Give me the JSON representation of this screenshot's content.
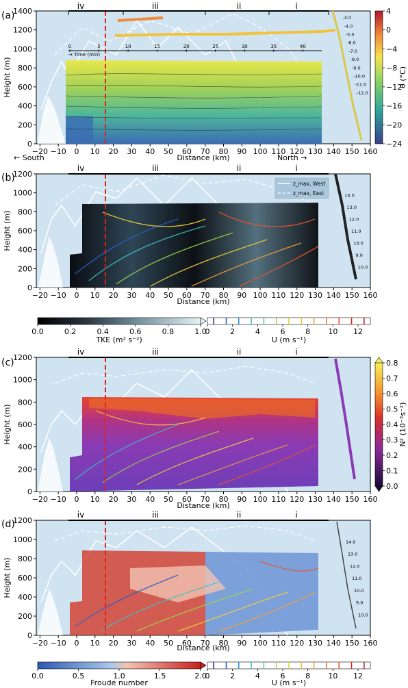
{
  "figure": {
    "x_axis_label": "Distance (km)",
    "direction_left": "← South",
    "direction_right": "North →",
    "sections": [
      "iv",
      "iii",
      "ii",
      "i"
    ]
  },
  "panels": [
    {
      "id": "a",
      "label": "(a)",
      "ylabel": "Height (m)",
      "yticks": [
        0,
        200,
        400,
        600,
        800,
        1000,
        1200,
        1400
      ],
      "colorbar": {
        "label": "θ (°C)",
        "ticks": [
          "4",
          "0",
          "−4",
          "−8",
          "−12",
          "−16",
          "−20",
          "−24"
        ]
      },
      "inset_time_axis": {
        "label": "→ Time (min)",
        "ticks": [
          "0",
          "5",
          "10",
          "15",
          "20",
          "25",
          "30",
          "35",
          "40"
        ]
      },
      "profile_labels": [
        "-3.0",
        "-4.0",
        "-5.0",
        "-6.0",
        "-7.0",
        "-8.0",
        "-9.0",
        "-10.0",
        "-11.0",
        "-12.0"
      ]
    },
    {
      "id": "b",
      "label": "(b)",
      "ylabel": "Height (m)",
      "yticks": [
        0,
        200,
        400,
        600,
        800,
        1000,
        1200
      ],
      "legend": [
        "z_max, West",
        "z_max, East"
      ],
      "profile_labels": [
        "14.0",
        "13.0",
        "12.0",
        "11.0",
        "10.0",
        "9.0",
        "10.0"
      ]
    },
    {
      "id": "c",
      "label": "(c)",
      "ylabel": "Height (m)",
      "yticks": [
        0,
        200,
        400,
        600,
        800,
        1000,
        1200
      ],
      "colorbar": {
        "label": "N² (10⁻³s⁻²)",
        "ticks": [
          "0.8",
          "0.7",
          "0.6",
          "0.5",
          "0.4",
          "0.3",
          "0.2",
          "0.1",
          "0.0"
        ]
      }
    },
    {
      "id": "d",
      "label": "(d)",
      "ylabel": "Height (m)",
      "yticks": [
        0,
        200,
        400,
        600,
        800,
        1000,
        1200
      ],
      "profile_labels": [
        "14.0",
        "13.0",
        "12.0",
        "11.0",
        "10.0",
        "9.0",
        "10.0"
      ]
    }
  ],
  "colorbars_bottom": [
    {
      "label": "TKE (m² s⁻²)",
      "ticks": [
        "0.0",
        "0.2",
        "0.4",
        "0.6",
        "0.8",
        "1.0"
      ]
    },
    {
      "label": "U (m s⁻¹)",
      "ticks": [
        "0",
        "2",
        "4",
        "6",
        "8",
        "10",
        "12"
      ]
    },
    {
      "label": "Froude number",
      "ticks": [
        "0.0",
        "0.5",
        "1.0",
        "1.5",
        "2.0"
      ]
    },
    {
      "label": "U (m s⁻¹)",
      "ticks": [
        "0",
        "2",
        "4",
        "6",
        "8",
        "10",
        "12"
      ]
    }
  ],
  "chart_data": [
    {
      "type": "heatmap",
      "panel": "a",
      "title": "",
      "xlabel": "Distance (km)",
      "ylabel": "Height (m)",
      "xlim": [
        -22,
        160
      ],
      "ylim": [
        0,
        1400
      ],
      "x_ticks": [
        -20,
        -10,
        0,
        10,
        20,
        30,
        40,
        50,
        60,
        70,
        80,
        90,
        100,
        110,
        120,
        130,
        140,
        150,
        160
      ],
      "colormap_variable": "θ (°C)",
      "colormap_range": [
        -24,
        4
      ],
      "section_labels": [
        "iv",
        "iii",
        "ii",
        "i"
      ],
      "dashed_line_x": 18,
      "field_region_x": [
        0,
        136
      ],
      "field_region_top_height": 880,
      "colors": {
        "background": "#cfe3f1",
        "field_top": "#e5e54a",
        "field_bottom": "#3b5fa8",
        "dashed_line": "#e0201a"
      }
    },
    {
      "type": "heatmap",
      "panel": "b",
      "title": "",
      "xlabel": "Distance (km)",
      "ylabel": "Height (m)",
      "xlim": [
        -22,
        160
      ],
      "ylim": [
        0,
        1200
      ],
      "x_ticks": [
        -20,
        -10,
        0,
        10,
        20,
        30,
        40,
        50,
        60,
        70,
        80,
        90,
        100,
        110,
        120,
        130,
        140,
        150,
        160
      ],
      "colormap_variable": "TKE (m² s⁻²)",
      "colormap_range": [
        0.0,
        1.0
      ],
      "contour_variable": "U (m s⁻¹)",
      "contour_range": [
        0,
        13
      ],
      "dashed_line_x": 18,
      "field_region_x": [
        0,
        136
      ],
      "field_region_top_height": 880,
      "legend": [
        "z_max, West",
        "z_max, East"
      ],
      "legend_position": "top-right"
    },
    {
      "type": "heatmap",
      "panel": "c",
      "title": "",
      "xlabel": "Distance (km)",
      "ylabel": "Height (m)",
      "xlim": [
        -22,
        160
      ],
      "ylim": [
        0,
        1200
      ],
      "x_ticks": [
        -20,
        -10,
        0,
        10,
        20,
        30,
        40,
        50,
        60,
        70,
        80,
        90,
        100,
        110,
        120,
        130,
        140,
        150,
        160
      ],
      "colormap_variable": "N² (10⁻³s⁻²)",
      "colormap_range": [
        0.0,
        0.8
      ],
      "dashed_line_x": 18,
      "field_region_x": [
        0,
        136
      ],
      "field_region_top_height": 880
    },
    {
      "type": "heatmap",
      "panel": "d",
      "title": "",
      "xlabel": "Distance (km)",
      "ylabel": "Height (m)",
      "xlim": [
        -22,
        160
      ],
      "ylim": [
        0,
        1200
      ],
      "x_ticks": [
        -20,
        -10,
        0,
        10,
        20,
        30,
        40,
        50,
        60,
        70,
        80,
        90,
        100,
        110,
        120,
        130,
        140,
        150,
        160
      ],
      "colormap_variable": "Froude number",
      "colormap_range": [
        0.0,
        2.0
      ],
      "contour_variable": "U (m s⁻¹)",
      "contour_range": [
        0,
        13
      ],
      "dashed_line_x": 18,
      "field_region_x": [
        0,
        136
      ],
      "field_region_top_height": 880
    }
  ]
}
